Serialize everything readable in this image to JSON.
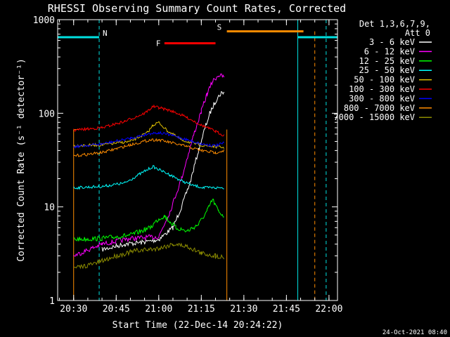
{
  "chart_data": {
    "type": "line",
    "title": "RHESSI Observing Summary Count Rates, Corrected",
    "xlabel": "Start Time (22-Dec-14 20:24:22)",
    "ylabel": "Corrected Count Rate (s⁻¹ detector⁻¹)",
    "yscale": "log",
    "ylim": [
      1,
      1000
    ],
    "xlim": [
      "20:24:22",
      "22:03:00"
    ],
    "x_ticks": [
      "20:30",
      "20:45",
      "21:00",
      "21:15",
      "21:30",
      "21:45",
      "22:00"
    ],
    "y_ticks": [
      "1",
      "10",
      "100",
      "1000"
    ],
    "legend_header": [
      "Det 1,3,6,7,9,",
      "Att 0"
    ],
    "legend_position": "top-right, outside plot",
    "series": [
      {
        "name": "3 - 6 keV",
        "color": "#ffffff",
        "points": [
          [
            "20:40",
            3.5
          ],
          [
            "20:48",
            4
          ],
          [
            "20:55",
            4.2
          ],
          [
            "21:00",
            4.5
          ],
          [
            "21:05",
            6
          ],
          [
            "21:08",
            10
          ],
          [
            "21:11",
            18
          ],
          [
            "21:14",
            40
          ],
          [
            "21:16",
            65
          ],
          [
            "21:18",
            100
          ],
          [
            "21:20",
            135
          ],
          [
            "21:22",
            165
          ],
          [
            "21:23",
            170
          ]
        ]
      },
      {
        "name": "6 - 12 keV",
        "color": "#ff00ff",
        "points": [
          [
            "20:30",
            3
          ],
          [
            "20:40",
            4
          ],
          [
            "20:50",
            4.6
          ],
          [
            "21:00",
            4.8
          ],
          [
            "21:04",
            9
          ],
          [
            "21:08",
            20
          ],
          [
            "21:12",
            55
          ],
          [
            "21:15",
            105
          ],
          [
            "21:17",
            160
          ],
          [
            "21:19",
            220
          ],
          [
            "21:21",
            255
          ],
          [
            "21:23",
            245
          ]
        ]
      },
      {
        "name": "12 - 25 keV",
        "color": "#00ff00",
        "points": [
          [
            "20:30",
            4.5
          ],
          [
            "20:40",
            4.6
          ],
          [
            "20:50",
            5
          ],
          [
            "20:57",
            6
          ],
          [
            "21:00",
            7.5
          ],
          [
            "21:02",
            8
          ],
          [
            "21:06",
            6
          ],
          [
            "21:10",
            5.5
          ],
          [
            "21:14",
            6.5
          ],
          [
            "21:17",
            9
          ],
          [
            "21:19",
            12
          ],
          [
            "21:21",
            9
          ],
          [
            "21:23",
            8
          ]
        ]
      },
      {
        "name": "25 - 50 keV",
        "color": "#00ffff",
        "points": [
          [
            "20:30",
            16
          ],
          [
            "20:40",
            16.5
          ],
          [
            "20:48",
            18
          ],
          [
            "20:55",
            24
          ],
          [
            "20:58",
            27
          ],
          [
            "21:00",
            25
          ],
          [
            "21:04",
            22
          ],
          [
            "21:08",
            19
          ],
          [
            "21:12",
            17
          ],
          [
            "21:16",
            16
          ],
          [
            "21:20",
            16
          ],
          [
            "21:23",
            16
          ]
        ]
      },
      {
        "name": "50 - 100 keV",
        "color": "#e0c000",
        "points": [
          [
            "20:30",
            45
          ],
          [
            "20:40",
            46
          ],
          [
            "20:50",
            50
          ],
          [
            "20:56",
            62
          ],
          [
            "20:58",
            75
          ],
          [
            "21:00",
            80
          ],
          [
            "21:03",
            65
          ],
          [
            "21:08",
            52
          ],
          [
            "21:12",
            48
          ],
          [
            "21:16",
            45
          ],
          [
            "21:20",
            44
          ],
          [
            "21:23",
            43
          ]
        ]
      },
      {
        "name": "100 - 300 keV",
        "color": "#ff0000",
        "points": [
          [
            "20:30",
            66
          ],
          [
            "20:40",
            70
          ],
          [
            "20:48",
            82
          ],
          [
            "20:55",
            100
          ],
          [
            "20:58",
            118
          ],
          [
            "21:00",
            115
          ],
          [
            "21:05",
            105
          ],
          [
            "21:10",
            90
          ],
          [
            "21:15",
            75
          ],
          [
            "21:20",
            64
          ],
          [
            "21:23",
            58
          ]
        ]
      },
      {
        "name": "300 - 800 keV",
        "color": "#0000ff",
        "points": [
          [
            "20:30",
            44
          ],
          [
            "20:40",
            47
          ],
          [
            "20:50",
            54
          ],
          [
            "20:57",
            61
          ],
          [
            "21:00",
            62
          ],
          [
            "21:05",
            58
          ],
          [
            "21:10",
            52
          ],
          [
            "21:15",
            47
          ],
          [
            "21:20",
            45
          ],
          [
            "21:23",
            48
          ]
        ]
      },
      {
        "name": "800 - 7000 keV",
        "color": "#ff8c00",
        "points": [
          [
            "20:30",
            35
          ],
          [
            "20:40",
            38
          ],
          [
            "20:50",
            46
          ],
          [
            "20:57",
            52
          ],
          [
            "21:00",
            52
          ],
          [
            "21:05",
            48
          ],
          [
            "21:10",
            44
          ],
          [
            "21:15",
            40
          ],
          [
            "21:20",
            38
          ],
          [
            "21:23",
            40
          ]
        ]
      },
      {
        "name": "7000 - 15000 keV",
        "color": "#8b8b00",
        "points": [
          [
            "20:30",
            2.2
          ],
          [
            "20:38",
            2.5
          ],
          [
            "20:45",
            3
          ],
          [
            "20:52",
            3.4
          ],
          [
            "21:00",
            3.6
          ],
          [
            "21:05",
            4
          ],
          [
            "21:10",
            3.8
          ],
          [
            "21:15",
            3.2
          ],
          [
            "21:20",
            3
          ],
          [
            "21:23",
            2.9
          ]
        ]
      }
    ],
    "annotations": {
      "N": {
        "label": "N",
        "color": "#00e0e0",
        "intervals": [
          [
            "20:24:22",
            "20:39:00"
          ],
          [
            "21:49:00",
            "22:03:00"
          ]
        ],
        "value": 650
      },
      "S": {
        "label": "S",
        "color": "#ff8c00",
        "intervals": [
          [
            "21:24:00",
            "21:51:00"
          ]
        ],
        "value": 750
      },
      "F": {
        "label": "F",
        "color": "#ff0000",
        "intervals": [
          [
            "21:02:00",
            "21:20:00"
          ]
        ],
        "value": 560
      },
      "cyan_verticals": [
        "20:24:22",
        "21:49:00"
      ],
      "cyan_dashed_verticals": [
        "20:39:00",
        "21:59:00"
      ],
      "orange_verticals": [
        "20:30:00",
        "21:24:00"
      ],
      "orange_dashed_verticals": [
        "21:55:00"
      ]
    }
  },
  "footer": {
    "timestamp": "24-Oct-2021 08:40"
  }
}
